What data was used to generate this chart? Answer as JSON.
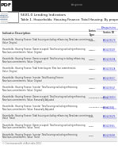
{
  "title_main": "5601.0 Lending Indicators",
  "title_sub": "Table 1. Households: Housing Finance: Total Housing: By property",
  "header_series": "Series\nType",
  "header_unitid": "Series ID",
  "col_header": "Indicator Description",
  "footnote": "© Commonwealth of Australia 2021",
  "link_text": "Enquiries",
  "rows": [
    {
      "desc": "Households    Housing Finance    Total housing excluding refinancing    New loan commitments    Value    Original",
      "series": "Original",
      "id": "A83423557X"
    },
    {
      "desc": "Households    Housing Finance    Owner occupied    Total housing excluding refinancing    New loan commitments    Value    Original",
      "series": "Original",
      "id": "A83423558Y"
    },
    {
      "desc": "Households    Housing Finance    Owner occupied    Total housing including refinancing    New loan commitments    Value    Original",
      "series": "Original",
      "id": "A83423559A"
    },
    {
      "desc": "Households    Housing Finance    Total home buyers    New loan commitments    Value    Original",
      "series": "Original",
      "id": "A83423562A"
    },
    {
      "desc": "Households    Housing Finance    Investor    Total Housing Finance    New loan commitments    Value    Original",
      "series": "Original",
      "id": "A83423563C"
    },
    {
      "desc": "Households    Housing Finance    Investor    Total housing excluding refinancing    New loan commitments    Value    Original",
      "series": "Original",
      "id": "A83423564F"
    },
    {
      "desc": "Households    Housing Finance    Owner occupied    Total housing excluding refinancing    New loan commitments    Value    Seasonally Adjusted",
      "series": "Seasonally\nAdjusted",
      "id": "A83423565H"
    },
    {
      "desc": "Households    Housing Finance    Investor    Total housing excluding refinancing    New loan commitments    Value    Seasonally Adjusted",
      "series": "Seasonally\nAdjusted",
      "id": "A83423566J"
    },
    {
      "desc": "Households    Housing Finance    Total housing excluding refinancing    New loan commitments    Value    Trend",
      "series": "Trend",
      "id": "A83423567K"
    },
    {
      "desc": "Households    Housing Finance    Owner occupied    Total housing excluding refinancing    New loan commitments    Value    Trend",
      "series": "Trend",
      "id": "A83423568L"
    },
    {
      "desc": "Households    Housing Finance    Investor    Total housing excluding refinancing    New loan commitments    Value    Trend",
      "series": "Trend",
      "id": "A83423569R"
    }
  ],
  "bg_color": "#ffffff",
  "link_color": "#3333cc",
  "text_color": "#333333",
  "border_color": "#cccccc",
  "row_colors": [
    "#f0f0f0",
    "#ffffff"
  ],
  "dark_bar_color": "#1a1a1a",
  "abs_border": "#888888",
  "abs_text": "#003366",
  "title_color": "#111111",
  "header_text_color": "#444444"
}
